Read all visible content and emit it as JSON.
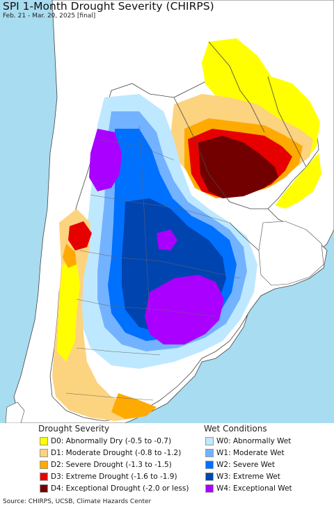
{
  "header": {
    "title": "SPI 1-Month Drought Severity (CHIRPS)",
    "subtitle": "Feb. 21 - Mar. 20, 2025 [final]"
  },
  "legend": {
    "drought_title": "Drought Severity",
    "wet_title": "Wet Conditions",
    "drought_items": [
      {
        "label": "D0: Abnormally Dry (-0.5 to -0.7)",
        "color": "#ffff00"
      },
      {
        "label": "D1: Moderate Drought (-0.8 to -1.2)",
        "color": "#fcd37f"
      },
      {
        "label": "D2: Severe Drought (-1.3 to -1.5)",
        "color": "#ffaa00"
      },
      {
        "label": "D3: Extreme Drought (-1.6 to -1.9)",
        "color": "#e60000"
      },
      {
        "label": "D4: Exceptional Drought (-2.0 or less)",
        "color": "#730000"
      }
    ],
    "wet_items": [
      {
        "label": "W0: Abnormally Wet",
        "color": "#bee8ff"
      },
      {
        "label": "W1: Moderate Wet",
        "color": "#73b2ff"
      },
      {
        "label": "W2: Severe Wet",
        "color": "#0070ff"
      },
      {
        "label": "W3: Extreme Wet",
        "color": "#0044b0"
      },
      {
        "label": "W4: Exceptional Wet",
        "color": "#aa00ff"
      }
    ]
  },
  "map_colors": {
    "ocean": "#a8dcf0",
    "land_outside": "#ffffff",
    "no_data_land": "#ffffff",
    "border": "#555555"
  },
  "footer": {
    "source": "Source: CHIRPS, UCSB, Climate Hazards Center"
  }
}
